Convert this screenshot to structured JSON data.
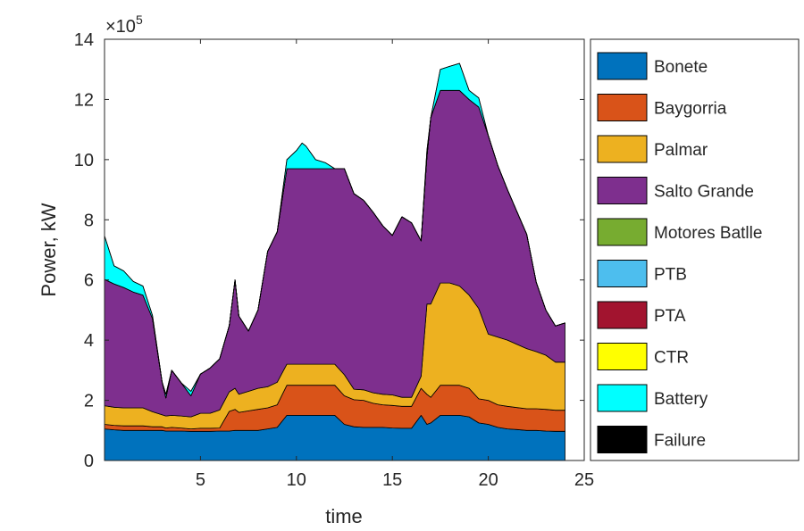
{
  "chart_data": {
    "type": "area",
    "stacked": true,
    "title": "",
    "xlabel": "time",
    "ylabel": "Power, kW",
    "y_exponent_label": "×10",
    "y_exponent_power": "5",
    "y_scale": 100000,
    "xlim": [
      0,
      25
    ],
    "ylim": [
      0,
      14
    ],
    "xticks": [
      5,
      10,
      15,
      20,
      25
    ],
    "yticks": [
      0,
      2,
      4,
      6,
      8,
      10,
      12,
      14
    ],
    "legend_position": "right",
    "x": [
      0,
      0.5,
      1,
      1.5,
      2,
      2.5,
      3,
      3.2,
      3.5,
      4,
      4.5,
      5,
      5.5,
      6,
      6.5,
      6.8,
      7,
      7.5,
      8,
      8.5,
      9,
      9.5,
      10,
      10.3,
      10.5,
      11,
      11.5,
      12,
      12.5,
      13,
      13.5,
      14,
      14.5,
      15,
      15.5,
      16,
      16.5,
      16.8,
      17,
      17.5,
      18,
      18.5,
      19,
      19.5,
      20,
      20.5,
      21,
      21.5,
      22,
      22.5,
      23,
      23.5,
      24
    ],
    "series": [
      {
        "name": "Bonete",
        "color": "#0072BD",
        "values": [
          1.05,
          1.02,
          1.0,
          1.0,
          1.0,
          1.0,
          1.0,
          0.98,
          0.98,
          0.98,
          0.97,
          0.97,
          0.97,
          0.98,
          0.98,
          1.0,
          1.0,
          1.0,
          1.0,
          1.05,
          1.1,
          1.5,
          1.5,
          1.5,
          1.5,
          1.5,
          1.5,
          1.5,
          1.2,
          1.12,
          1.1,
          1.1,
          1.1,
          1.08,
          1.07,
          1.07,
          1.5,
          1.2,
          1.25,
          1.5,
          1.5,
          1.5,
          1.45,
          1.25,
          1.2,
          1.1,
          1.05,
          1.03,
          1.0,
          1.0,
          0.98,
          0.97,
          0.97
        ]
      },
      {
        "name": "Baygorria",
        "color": "#D95319",
        "values": [
          0.15,
          0.15,
          0.15,
          0.15,
          0.15,
          0.12,
          0.12,
          0.1,
          0.12,
          0.1,
          0.08,
          0.1,
          0.1,
          0.1,
          0.65,
          0.7,
          0.6,
          0.65,
          0.7,
          0.7,
          0.75,
          1.0,
          1.0,
          1.0,
          1.0,
          1.0,
          1.0,
          1.0,
          0.95,
          0.9,
          0.9,
          0.8,
          0.75,
          0.75,
          0.73,
          0.73,
          0.9,
          1.0,
          0.85,
          1.0,
          1.0,
          1.0,
          0.95,
          0.8,
          0.8,
          0.75,
          0.75,
          0.73,
          0.72,
          0.72,
          0.72,
          0.7,
          0.7
        ]
      },
      {
        "name": "Palmar",
        "color": "#EDB120",
        "values": [
          0.62,
          0.6,
          0.6,
          0.6,
          0.6,
          0.5,
          0.4,
          0.4,
          0.4,
          0.4,
          0.4,
          0.5,
          0.5,
          0.6,
          0.65,
          0.7,
          0.6,
          0.65,
          0.7,
          0.7,
          0.75,
          0.7,
          0.7,
          0.7,
          0.7,
          0.7,
          0.7,
          0.7,
          0.7,
          0.35,
          0.35,
          0.35,
          0.35,
          0.35,
          0.3,
          0.3,
          0.4,
          3.0,
          3.1,
          3.4,
          3.4,
          3.3,
          3.1,
          3.0,
          2.2,
          2.25,
          2.2,
          2.1,
          2.0,
          1.9,
          1.8,
          1.6,
          1.6
        ]
      },
      {
        "name": "Salto Grande",
        "color": "#7E2F8E",
        "values": [
          4.2,
          4.1,
          4.0,
          3.85,
          3.75,
          3.1,
          1.1,
          0.6,
          1.5,
          1.1,
          0.7,
          1.3,
          1.5,
          1.7,
          2.2,
          3.6,
          2.6,
          2.0,
          2.6,
          4.5,
          5.0,
          6.5,
          6.5,
          6.5,
          6.5,
          6.5,
          6.5,
          6.5,
          6.85,
          6.5,
          6.3,
          6.0,
          5.6,
          5.3,
          6.0,
          5.8,
          4.5,
          4.9,
          6.2,
          6.4,
          6.4,
          6.5,
          6.5,
          6.7,
          6.6,
          5.7,
          5.0,
          4.4,
          3.8,
          2.3,
          1.5,
          1.2,
          1.3
        ]
      },
      {
        "name": "Motores Batlle",
        "color": "#77AC30",
        "values": [
          0,
          0,
          0,
          0,
          0,
          0,
          0,
          0,
          0,
          0,
          0,
          0,
          0,
          0,
          0,
          0,
          0,
          0,
          0,
          0,
          0,
          0,
          0,
          0,
          0,
          0,
          0,
          0,
          0,
          0,
          0,
          0,
          0,
          0,
          0,
          0,
          0,
          0,
          0,
          0,
          0,
          0,
          0,
          0,
          0,
          0,
          0,
          0,
          0,
          0,
          0,
          0,
          0
        ]
      },
      {
        "name": "PTB",
        "color": "#4DBEEE",
        "values": [
          0,
          0,
          0,
          0,
          0,
          0,
          0,
          0,
          0,
          0,
          0,
          0,
          0,
          0,
          0,
          0,
          0,
          0,
          0,
          0,
          0,
          0,
          0,
          0,
          0,
          0,
          0,
          0,
          0,
          0,
          0,
          0,
          0,
          0,
          0,
          0,
          0,
          0,
          0,
          0,
          0,
          0,
          0,
          0,
          0,
          0,
          0,
          0,
          0,
          0,
          0,
          0,
          0
        ]
      },
      {
        "name": "PTA",
        "color": "#A2142F",
        "values": [
          0,
          0,
          0,
          0,
          0,
          0,
          0,
          0,
          0,
          0,
          0,
          0,
          0,
          0,
          0,
          0,
          0,
          0,
          0,
          0,
          0,
          0,
          0,
          0,
          0,
          0,
          0,
          0,
          0,
          0,
          0,
          0,
          0,
          0,
          0,
          0,
          0,
          0,
          0,
          0,
          0,
          0,
          0,
          0,
          0,
          0,
          0,
          0,
          0,
          0,
          0,
          0,
          0
        ]
      },
      {
        "name": "CTR",
        "color": "#FFFF00",
        "values": [
          0,
          0,
          0,
          0,
          0,
          0,
          0,
          0,
          0,
          0,
          0,
          0,
          0,
          0,
          0,
          0,
          0,
          0,
          0,
          0,
          0,
          0,
          0,
          0,
          0,
          0,
          0,
          0,
          0,
          0,
          0,
          0,
          0,
          0,
          0,
          0,
          0,
          0,
          0,
          0,
          0,
          0,
          0,
          0,
          0,
          0,
          0,
          0,
          0,
          0,
          0,
          0,
          0
        ]
      },
      {
        "name": "Battery",
        "color": "#00FFFF",
        "values": [
          1.45,
          0.6,
          0.55,
          0.35,
          0.3,
          0.1,
          0,
          0.12,
          0,
          0,
          0.15,
          0,
          0,
          0,
          0,
          0,
          0,
          0,
          0,
          0,
          0,
          0.3,
          0.6,
          0.85,
          0.75,
          0.3,
          0.2,
          0,
          0,
          0,
          0,
          0,
          0,
          0,
          0,
          0,
          0,
          0.2,
          0,
          0.7,
          0.8,
          0.9,
          0.3,
          0.3,
          0,
          0,
          0,
          0,
          0,
          0,
          0,
          0,
          0
        ]
      },
      {
        "name": "Failure",
        "color": "#000000",
        "values": [
          0,
          0,
          0,
          0,
          0,
          0,
          0,
          0,
          0,
          0,
          0,
          0,
          0,
          0,
          0,
          0,
          0,
          0,
          0,
          0,
          0,
          0,
          0,
          0,
          0,
          0,
          0,
          0,
          0,
          0,
          0,
          0,
          0,
          0,
          0,
          0,
          0,
          0,
          0,
          0,
          0,
          0,
          0,
          0,
          0,
          0,
          0,
          0,
          0,
          0,
          0,
          0,
          0
        ]
      }
    ]
  }
}
